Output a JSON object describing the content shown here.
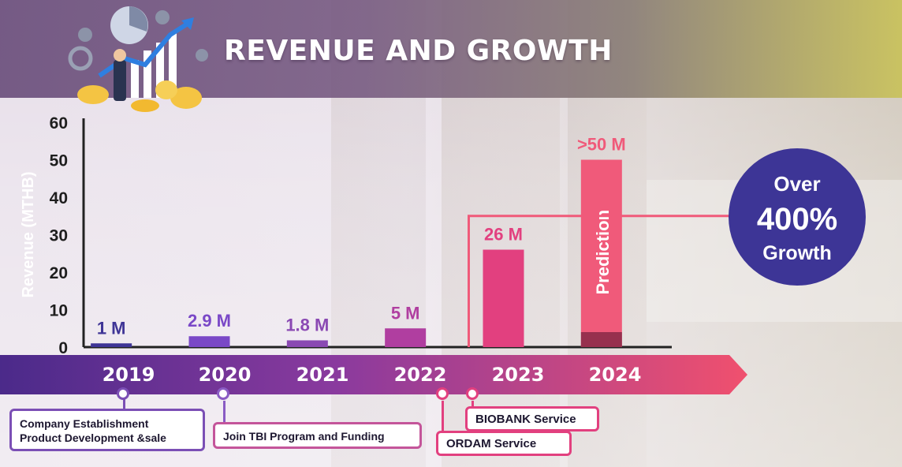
{
  "header": {
    "title": "REVENUE AND GROWTH"
  },
  "chart_data": {
    "type": "bar",
    "categories": [
      "2019",
      "2020",
      "2021",
      "2022",
      "2023",
      "2024"
    ],
    "values": [
      1,
      2.9,
      1.8,
      5,
      26,
      50
    ],
    "value_labels": [
      "1 M",
      "2.9 M",
      "1.8 M",
      "5 M",
      "26 M",
      ">50 M"
    ],
    "bar_colors": [
      "#3f3596",
      "#7a48c7",
      "#8a49b3",
      "#b03ea0",
      "#e2407f",
      "#f05a7a"
    ],
    "label_colors": [
      "#3f3596",
      "#7a48c7",
      "#8a49b3",
      "#b03ea0",
      "#e2407f",
      "#f05a7a"
    ],
    "ylabel": "Revenue (MTHB)",
    "yticks": [
      0,
      10,
      20,
      30,
      40,
      50,
      60
    ],
    "ylim": [
      0,
      60
    ],
    "prediction_label": "Prediction",
    "prediction_category": "2024",
    "grid": false
  },
  "timeline": {
    "years": [
      "2019",
      "2020",
      "2021",
      "2022",
      "2023",
      "2024"
    ],
    "milestones": [
      {
        "lines": [
          "Company Establishment",
          "Product Development &sale"
        ]
      },
      {
        "lines": [
          "Join TBI Program and Funding"
        ]
      },
      {
        "lines": [
          "ORDAM Service"
        ]
      },
      {
        "lines": [
          "BIOBANK Service"
        ]
      }
    ]
  },
  "growth": {
    "line1": "Over",
    "line2": "400%",
    "line3": "Growth"
  },
  "colors": {
    "title_band": "#6b4f7c",
    "timeline_start": "#4b2a8a",
    "timeline_end": "#f0506e",
    "growth_circle": "#3d3596"
  }
}
